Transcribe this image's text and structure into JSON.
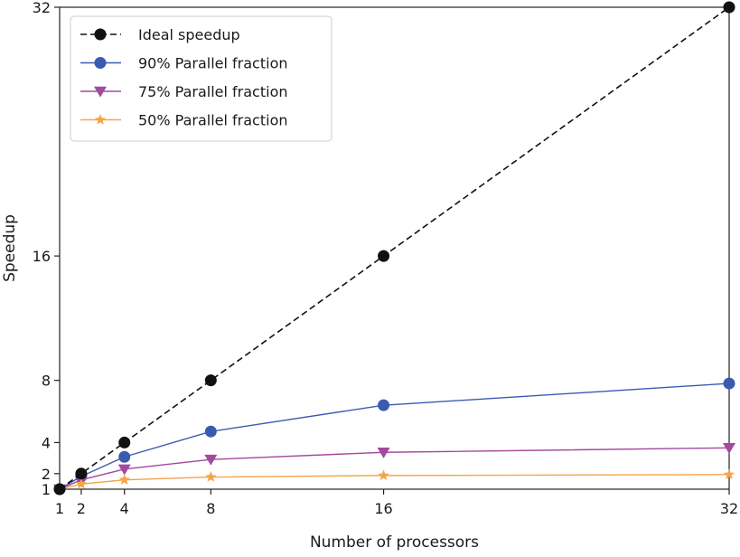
{
  "chart_data": {
    "type": "line",
    "xlabel": "Number of processors",
    "ylabel": "Speedup",
    "xlim": [
      1,
      32
    ],
    "ylim": [
      1,
      32
    ],
    "xticks": [
      1,
      2,
      4,
      8,
      16,
      32
    ],
    "yticks": [
      1,
      2,
      4,
      8,
      16,
      32
    ],
    "x": [
      1,
      2,
      4,
      8,
      16,
      32
    ],
    "legend_position": "top-left",
    "grid": false,
    "series": [
      {
        "name": "Ideal speedup",
        "values": [
          1,
          2,
          4,
          8,
          16,
          32
        ],
        "color": "#111111",
        "marker": "circle",
        "dashed": true
      },
      {
        "name": "90% Parallel fraction",
        "values": [
          1,
          1.82,
          3.08,
          4.71,
          6.4,
          7.8
        ],
        "color": "#3b5bb0",
        "marker": "circle",
        "dashed": false
      },
      {
        "name": "75% Parallel fraction",
        "values": [
          1,
          1.6,
          2.29,
          2.91,
          3.37,
          3.66
        ],
        "color": "#a24a9e",
        "marker": "triangle-down",
        "dashed": false
      },
      {
        "name": "50% Parallel fraction",
        "values": [
          1,
          1.33,
          1.6,
          1.78,
          1.88,
          1.94
        ],
        "color": "#f5a44a",
        "marker": "star",
        "dashed": false
      }
    ]
  }
}
